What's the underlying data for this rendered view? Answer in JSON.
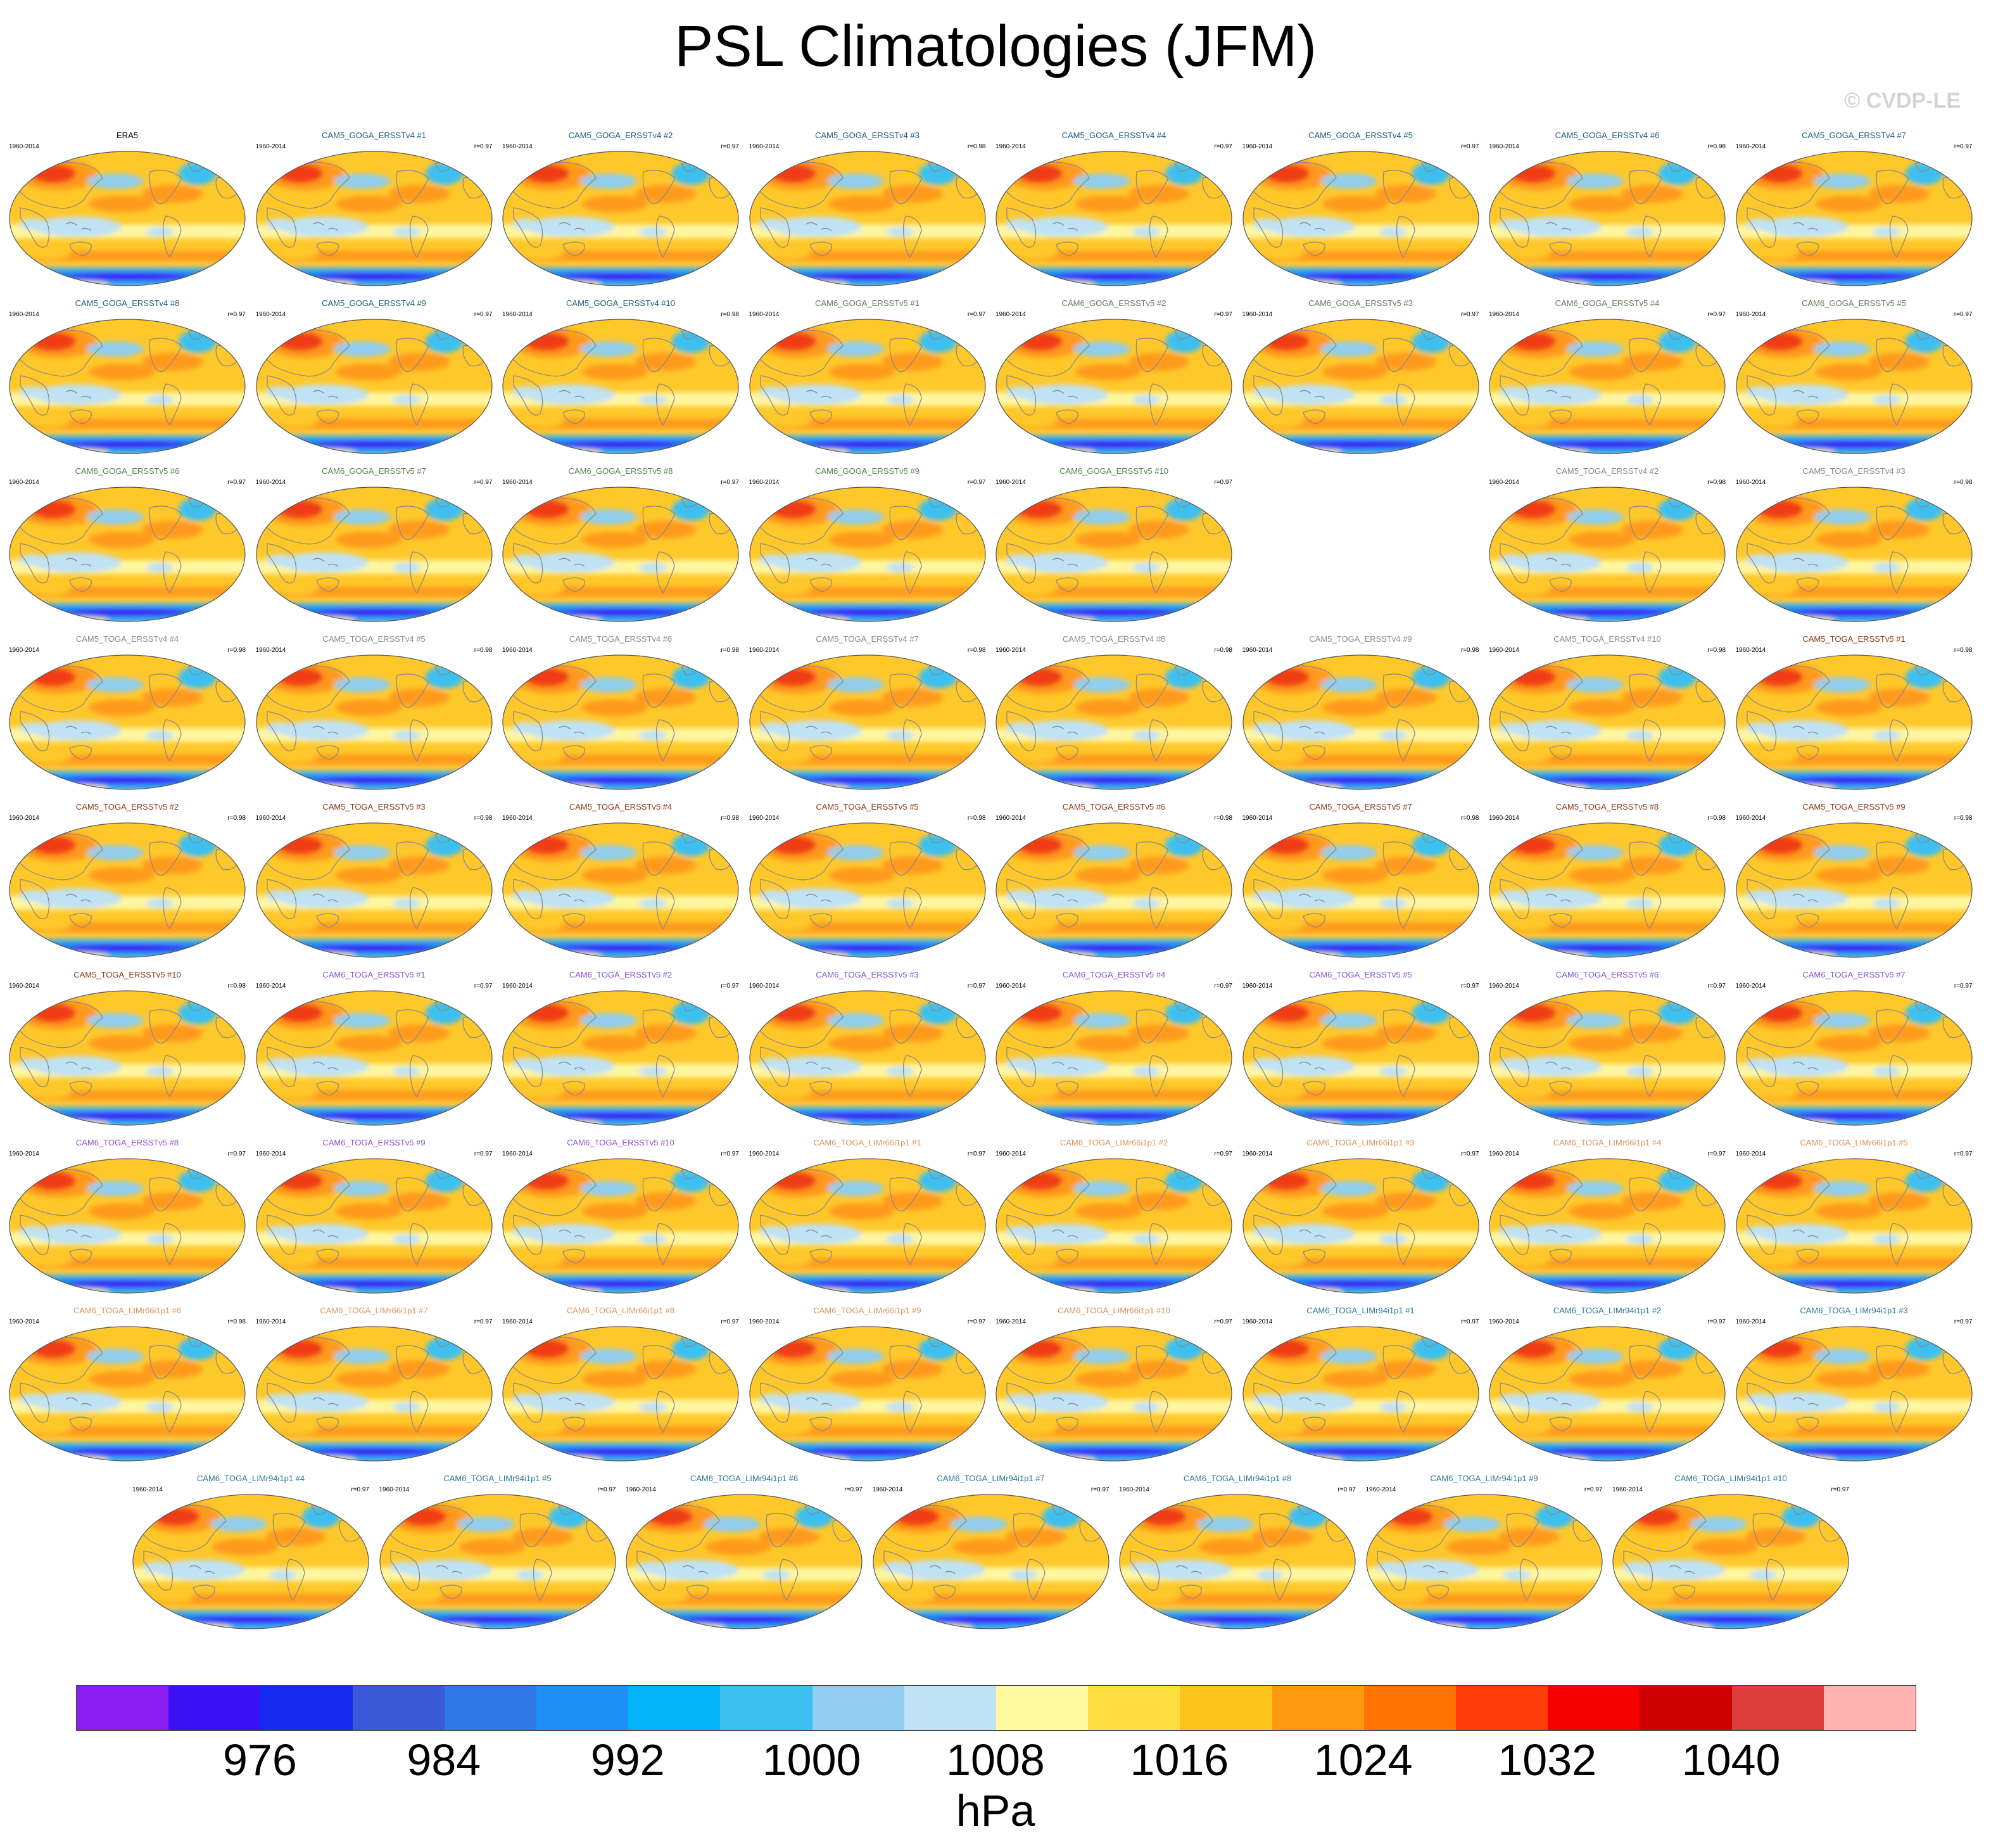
{
  "title": "PSL Climatologies (JFM)",
  "watermark": "© CVDP-LE",
  "panel_colors": {
    "obs": "#000000",
    "CAM5_GOGA_ERSSTv4": "#1f5f7a",
    "CAM6_GOGA_ERSSTv5": "#5e7f55",
    "CAM5_TOGA_ERSSTv4": "#8a8a8a",
    "CAM5_TOGA_ERSSTv5": "#8b3a1a",
    "CAM6_TOGA_ERSSTv5": "#8a55d6",
    "CAM6_TOGA_LIMr66i1p1": "#d9935a",
    "CAM6_TOGA_LIMr94i1p1": "#2a7a9a"
  },
  "panels": [
    {
      "title": "ERA5",
      "period": "1960-2014",
      "corr": "",
      "group": "obs"
    },
    {
      "title": "CAM5_GOGA_ERSSTv4 #1",
      "period": "1960-2014",
      "corr": "r=0.97",
      "group": "CAM5_GOGA_ERSSTv4"
    },
    {
      "title": "CAM5_GOGA_ERSSTv4 #2",
      "period": "1960-2014",
      "corr": "r=0.97",
      "group": "CAM5_GOGA_ERSSTv4"
    },
    {
      "title": "CAM5_GOGA_ERSSTv4 #3",
      "period": "1960-2014",
      "corr": "r=0.98",
      "group": "CAM5_GOGA_ERSSTv4"
    },
    {
      "title": "CAM5_GOGA_ERSSTv4 #4",
      "period": "1960-2014",
      "corr": "r=0.97",
      "group": "CAM5_GOGA_ERSSTv4"
    },
    {
      "title": "CAM5_GOGA_ERSSTv4 #5",
      "period": "1960-2014",
      "corr": "r=0.97",
      "group": "CAM5_GOGA_ERSSTv4"
    },
    {
      "title": "CAM5_GOGA_ERSSTv4 #6",
      "period": "1960-2014",
      "corr": "r=0.98",
      "group": "CAM5_GOGA_ERSSTv4"
    },
    {
      "title": "CAM5_GOGA_ERSSTv4 #7",
      "period": "1960-2014",
      "corr": "r=0.97",
      "group": "CAM5_GOGA_ERSSTv4"
    },
    {
      "title": "CAM5_GOGA_ERSSTv4 #8",
      "period": "1960-2014",
      "corr": "r=0.97",
      "group": "CAM5_GOGA_ERSSTv4"
    },
    {
      "title": "CAM5_GOGA_ERSSTv4 #9",
      "period": "1960-2014",
      "corr": "r=0.97",
      "group": "CAM5_GOGA_ERSSTv4"
    },
    {
      "title": "CAM5_GOGA_ERSSTv4 #10",
      "period": "1960-2014",
      "corr": "r=0.98",
      "group": "CAM5_GOGA_ERSSTv4"
    },
    {
      "title": "CAM6_GOGA_ERSSTv5 #1",
      "period": "1960-2014",
      "corr": "r=0.97",
      "group": "CAM6_GOGA_ERSSTv5"
    },
    {
      "title": "CAM6_GOGA_ERSSTv5 #2",
      "period": "1960-2014",
      "corr": "r=0.97",
      "group": "CAM6_GOGA_ERSSTv5"
    },
    {
      "title": "CAM6_GOGA_ERSSTv5 #3",
      "period": "1960-2014",
      "corr": "r=0.97",
      "group": "CAM6_GOGA_ERSSTv5"
    },
    {
      "title": "CAM6_GOGA_ERSSTv5 #4",
      "period": "1960-2014",
      "corr": "r=0.97",
      "group": "CAM6_GOGA_ERSSTv5"
    },
    {
      "title": "CAM6_GOGA_ERSSTv5 #5",
      "period": "1960-2014",
      "corr": "r=0.97",
      "group": "CAM6_GOGA_ERSSTv5"
    },
    {
      "title": "CAM6_GOGA_ERSSTv5 #6",
      "period": "1960-2014",
      "corr": "r=0.97",
      "group": "CAM6_GOGA_ERSSTv5"
    },
    {
      "title": "CAM6_GOGA_ERSSTv5 #7",
      "period": "1960-2014",
      "corr": "r=0.97",
      "group": "CAM6_GOGA_ERSSTv5"
    },
    {
      "title": "CAM6_GOGA_ERSSTv5 #8",
      "period": "1960-2014",
      "corr": "r=0.97",
      "group": "CAM6_GOGA_ERSSTv5"
    },
    {
      "title": "CAM6_GOGA_ERSSTv5 #9",
      "period": "1960-2014",
      "corr": "r=0.97",
      "group": "CAM6_GOGA_ERSSTv5"
    },
    {
      "title": "CAM6_GOGA_ERSSTv5 #10",
      "period": "1960-2014",
      "corr": "r=0.97",
      "group": "CAM6_GOGA_ERSSTv5"
    },
    null,
    {
      "title": "CAM5_TOGA_ERSSTv4 #2",
      "period": "1960-2014",
      "corr": "r=0.98",
      "group": "CAM5_TOGA_ERSSTv4"
    },
    {
      "title": "CAM5_TOGA_ERSSTv4 #3",
      "period": "1960-2014",
      "corr": "r=0.98",
      "group": "CAM5_TOGA_ERSSTv4"
    },
    {
      "title": "CAM5_TOGA_ERSSTv4 #4",
      "period": "1960-2014",
      "corr": "r=0.98",
      "group": "CAM5_TOGA_ERSSTv4"
    },
    {
      "title": "CAM5_TOGA_ERSSTv4 #5",
      "period": "1960-2014",
      "corr": "r=0.98",
      "group": "CAM5_TOGA_ERSSTv4"
    },
    {
      "title": "CAM5_TOGA_ERSSTv4 #6",
      "period": "1960-2014",
      "corr": "r=0.98",
      "group": "CAM5_TOGA_ERSSTv4"
    },
    {
      "title": "CAM5_TOGA_ERSSTv4 #7",
      "period": "1960-2014",
      "corr": "r=0.98",
      "group": "CAM5_TOGA_ERSSTv4"
    },
    {
      "title": "CAM5_TOGA_ERSSTv4 #8",
      "period": "1960-2014",
      "corr": "r=0.98",
      "group": "CAM5_TOGA_ERSSTv4"
    },
    {
      "title": "CAM5_TOGA_ERSSTv4 #9",
      "period": "1960-2014",
      "corr": "r=0.98",
      "group": "CAM5_TOGA_ERSSTv4"
    },
    {
      "title": "CAM5_TOGA_ERSSTv4 #10",
      "period": "1960-2014",
      "corr": "r=0.98",
      "group": "CAM5_TOGA_ERSSTv4"
    },
    {
      "title": "CAM5_TOGA_ERSSTv5 #1",
      "period": "1960-2014",
      "corr": "r=0.98",
      "group": "CAM5_TOGA_ERSSTv5"
    },
    {
      "title": "CAM5_TOGA_ERSSTv5 #2",
      "period": "1960-2014",
      "corr": "r=0.98",
      "group": "CAM5_TOGA_ERSSTv5"
    },
    {
      "title": "CAM5_TOGA_ERSSTv5 #3",
      "period": "1960-2014",
      "corr": "r=0.98",
      "group": "CAM5_TOGA_ERSSTv5"
    },
    {
      "title": "CAM5_TOGA_ERSSTv5 #4",
      "period": "1960-2014",
      "corr": "r=0.98",
      "group": "CAM5_TOGA_ERSSTv5"
    },
    {
      "title": "CAM5_TOGA_ERSSTv5 #5",
      "period": "1960-2014",
      "corr": "r=0.98",
      "group": "CAM5_TOGA_ERSSTv5"
    },
    {
      "title": "CAM5_TOGA_ERSSTv5 #6",
      "period": "1960-2014",
      "corr": "r=0.98",
      "group": "CAM5_TOGA_ERSSTv5"
    },
    {
      "title": "CAM5_TOGA_ERSSTv5 #7",
      "period": "1960-2014",
      "corr": "r=0.98",
      "group": "CAM5_TOGA_ERSSTv5"
    },
    {
      "title": "CAM5_TOGA_ERSSTv5 #8",
      "period": "1960-2014",
      "corr": "r=0.98",
      "group": "CAM5_TOGA_ERSSTv5"
    },
    {
      "title": "CAM5_TOGA_ERSSTv5 #9",
      "period": "1960-2014",
      "corr": "r=0.98",
      "group": "CAM5_TOGA_ERSSTv5"
    },
    {
      "title": "CAM5_TOGA_ERSSTv5 #10",
      "period": "1960-2014",
      "corr": "r=0.98",
      "group": "CAM5_TOGA_ERSSTv5"
    },
    {
      "title": "CAM6_TOGA_ERSSTv5 #1",
      "period": "1960-2014",
      "corr": "r=0.97",
      "group": "CAM6_TOGA_ERSSTv5"
    },
    {
      "title": "CAM6_TOGA_ERSSTv5 #2",
      "period": "1960-2014",
      "corr": "r=0.97",
      "group": "CAM6_TOGA_ERSSTv5"
    },
    {
      "title": "CAM6_TOGA_ERSSTv5 #3",
      "period": "1960-2014",
      "corr": "r=0.97",
      "group": "CAM6_TOGA_ERSSTv5"
    },
    {
      "title": "CAM6_TOGA_ERSSTv5 #4",
      "period": "1960-2014",
      "corr": "r=0.97",
      "group": "CAM6_TOGA_ERSSTv5"
    },
    {
      "title": "CAM6_TOGA_ERSSTv5 #5",
      "period": "1960-2014",
      "corr": "r=0.97",
      "group": "CAM6_TOGA_ERSSTv5"
    },
    {
      "title": "CAM6_TOGA_ERSSTv5 #6",
      "period": "1960-2014",
      "corr": "r=0.97",
      "group": "CAM6_TOGA_ERSSTv5"
    },
    {
      "title": "CAM6_TOGA_ERSSTv5 #7",
      "period": "1960-2014",
      "corr": "r=0.97",
      "group": "CAM6_TOGA_ERSSTv5"
    },
    {
      "title": "CAM6_TOGA_ERSSTv5 #8",
      "period": "1960-2014",
      "corr": "r=0.97",
      "group": "CAM6_TOGA_ERSSTv5"
    },
    {
      "title": "CAM6_TOGA_ERSSTv5 #9",
      "period": "1960-2014",
      "corr": "r=0.97",
      "group": "CAM6_TOGA_ERSSTv5"
    },
    {
      "title": "CAM6_TOGA_ERSSTv5 #10",
      "period": "1960-2014",
      "corr": "r=0.97",
      "group": "CAM6_TOGA_ERSSTv5"
    },
    {
      "title": "CAM6_TOGA_LIMr66i1p1 #1",
      "period": "1960-2014",
      "corr": "r=0.97",
      "group": "CAM6_TOGA_LIMr66i1p1"
    },
    {
      "title": "CAM6_TOGA_LIMr66i1p1 #2",
      "period": "1960-2014",
      "corr": "r=0.97",
      "group": "CAM6_TOGA_LIMr66i1p1"
    },
    {
      "title": "CAM6_TOGA_LIMr66i1p1 #3",
      "period": "1960-2014",
      "corr": "r=0.97",
      "group": "CAM6_TOGA_LIMr66i1p1"
    },
    {
      "title": "CAM6_TOGA_LIMr66i1p1 #4",
      "period": "1960-2014",
      "corr": "r=0.97",
      "group": "CAM6_TOGA_LIMr66i1p1"
    },
    {
      "title": "CAM6_TOGA_LIMr66i1p1 #5",
      "period": "1960-2014",
      "corr": "r=0.97",
      "group": "CAM6_TOGA_LIMr66i1p1"
    },
    {
      "title": "CAM6_TOGA_LIMr66i1p1 #6",
      "period": "1960-2014",
      "corr": "r=0.98",
      "group": "CAM6_TOGA_LIMr66i1p1"
    },
    {
      "title": "CAM6_TOGA_LIMr66i1p1 #7",
      "period": "1960-2014",
      "corr": "r=0.97",
      "group": "CAM6_TOGA_LIMr66i1p1"
    },
    {
      "title": "CAM6_TOGA_LIMr66i1p1 #8",
      "period": "1960-2014",
      "corr": "r=0.97",
      "group": "CAM6_TOGA_LIMr66i1p1"
    },
    {
      "title": "CAM6_TOGA_LIMr66i1p1 #9",
      "period": "1960-2014",
      "corr": "r=0.97",
      "group": "CAM6_TOGA_LIMr66i1p1"
    },
    {
      "title": "CAM6_TOGA_LIMr66i1p1 #10",
      "period": "1960-2014",
      "corr": "r=0.97",
      "group": "CAM6_TOGA_LIMr66i1p1"
    },
    {
      "title": "CAM6_TOGA_LIMr94i1p1 #1",
      "period": "1960-2014",
      "corr": "r=0.97",
      "group": "CAM6_TOGA_LIMr94i1p1"
    },
    {
      "title": "CAM6_TOGA_LIMr94i1p1 #2",
      "period": "1960-2014",
      "corr": "r=0.97",
      "group": "CAM6_TOGA_LIMr94i1p1"
    },
    {
      "title": "CAM6_TOGA_LIMr94i1p1 #3",
      "period": "1960-2014",
      "corr": "r=0.97",
      "group": "CAM6_TOGA_LIMr94i1p1"
    },
    {
      "title": "CAM6_TOGA_LIMr94i1p1 #4",
      "period": "1960-2014",
      "corr": "r=0.97",
      "group": "CAM6_TOGA_LIMr94i1p1"
    },
    {
      "title": "CAM6_TOGA_LIMr94i1p1 #5",
      "period": "1960-2014",
      "corr": "r=0.97",
      "group": "CAM6_TOGA_LIMr94i1p1"
    },
    {
      "title": "CAM6_TOGA_LIMr94i1p1 #6",
      "period": "1960-2014",
      "corr": "r=0.97",
      "group": "CAM6_TOGA_LIMr94i1p1"
    },
    {
      "title": "CAM6_TOGA_LIMr94i1p1 #7",
      "period": "1960-2014",
      "corr": "r=0.97",
      "group": "CAM6_TOGA_LIMr94i1p1"
    },
    {
      "title": "CAM6_TOGA_LIMr94i1p1 #8",
      "period": "1960-2014",
      "corr": "r=0.97",
      "group": "CAM6_TOGA_LIMr94i1p1"
    },
    {
      "title": "CAM6_TOGA_LIMr94i1p1 #9",
      "period": "1960-2014",
      "corr": "r=0.97",
      "group": "CAM6_TOGA_LIMr94i1p1"
    },
    {
      "title": "CAM6_TOGA_LIMr94i1p1 #10",
      "period": "1960-2014",
      "corr": "r=0.97",
      "group": "CAM6_TOGA_LIMr94i1p1"
    }
  ],
  "colorbar": {
    "units": "hPa",
    "tick_labels": [
      "976",
      "984",
      "992",
      "1000",
      "1008",
      "1016",
      "1024",
      "1032",
      "1040"
    ],
    "tick_after_box": [
      2,
      4,
      6,
      8,
      10,
      12,
      14,
      16,
      18
    ],
    "colors": [
      "#8a1ef0",
      "#3a10f5",
      "#1428f0",
      "#3a5ad8",
      "#2e78e8",
      "#1e90f5",
      "#05b4f8",
      "#3cc0f0",
      "#90cdee",
      "#bfe2f5",
      "#fffaa0",
      "#ffe040",
      "#ffc31e",
      "#ff9a10",
      "#ff7405",
      "#ff3c0a",
      "#f50000",
      "#cd0000",
      "#dc3c3c",
      "#ffb4b4"
    ]
  },
  "map_colors": {
    "ocean_mid": "#ffc82a",
    "subtropical_high": "#ff9a1a",
    "siberian_high": "#f03c14",
    "aleutian_low": "#90cdee",
    "icelandic_low": "#3cc0f0",
    "equatorial_low": "#fff6a0",
    "warm_pool_low": "#bfe2f5",
    "southern_ocean_trough_outer": "#3cb4f5",
    "southern_ocean_trough": "#1e78f0",
    "southern_ocean_core": "#3a10f5",
    "antarctic_high": "#fff6a0",
    "coastline": "#8a8a8a"
  }
}
